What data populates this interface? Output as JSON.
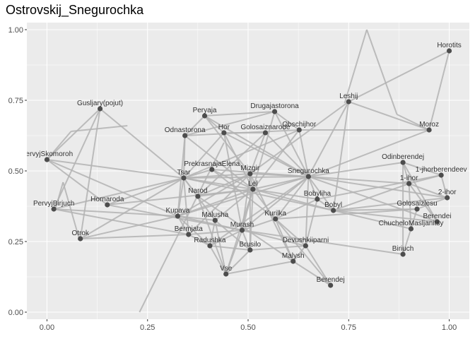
{
  "chart_data": {
    "type": "network",
    "title": "Ostrovskij_Snegurochka",
    "xlabel": "",
    "ylabel": "",
    "xlim": [
      -0.05,
      1.05
    ],
    "ylim": [
      -0.025,
      1.025
    ],
    "x_ticks": [
      0.0,
      0.25,
      0.5,
      0.75,
      1.0
    ],
    "x_tick_labels": [
      "0.00",
      "0.25",
      "0.50",
      "0.75",
      "1.00"
    ],
    "y_ticks": [
      0.0,
      0.25,
      0.5,
      0.75,
      1.0
    ],
    "y_tick_labels": [
      "0.00",
      "0.25",
      "0.50",
      "0.75",
      "1.00"
    ],
    "grid": true,
    "colors": {
      "panel": "#ebebeb",
      "grid": "#ffffff",
      "edge": "#b3b3b3",
      "node": "#4d4d4d",
      "label": "#333333"
    },
    "nodes": [
      {
        "id": "Horotits",
        "label": "Horotits",
        "x": 1.0,
        "y": 0.925
      },
      {
        "id": "Leshij",
        "label": "Leshij",
        "x": 0.75,
        "y": 0.745
      },
      {
        "id": "Moroz",
        "label": "Moroz",
        "x": 0.95,
        "y": 0.645
      },
      {
        "id": "Gusljary",
        "label": "Gusljary(pojut)",
        "x": 0.132,
        "y": 0.72
      },
      {
        "id": "Peryaja",
        "label": "Peryaja",
        "x": 0.392,
        "y": 0.695
      },
      {
        "id": "Drugajastorona",
        "label": "Drugajastorona",
        "x": 0.566,
        "y": 0.71
      },
      {
        "id": "Obschijhor",
        "label": "Obschijhor",
        "x": 0.627,
        "y": 0.645
      },
      {
        "id": "Goloszaznarode",
        "label": "Golosaiznarode",
        "x": 0.543,
        "y": 0.635
      },
      {
        "id": "Hor",
        "label": "Hor",
        "x": 0.44,
        "y": 0.635
      },
      {
        "id": "Odnastorona",
        "label": "Odnastorona",
        "x": 0.343,
        "y": 0.625
      },
      {
        "id": "PervyjSkomoroh",
        "label": "PervyjSkomoroh",
        "x": 0.0,
        "y": 0.54
      },
      {
        "id": "Odinberendej",
        "label": "Odinberendej",
        "x": 0.885,
        "y": 0.53
      },
      {
        "id": "1jhorberendeev",
        "label": "1-jhorberendeev",
        "x": 0.98,
        "y": 0.485
      },
      {
        "id": "PrekrasnajaElena",
        "label": "PrekrasnajaElena",
        "x": 0.41,
        "y": 0.505
      },
      {
        "id": "Mizgir",
        "label": "Mizgir",
        "x": 0.505,
        "y": 0.49
      },
      {
        "id": "Snegurochka",
        "label": "Snegurochka",
        "x": 0.65,
        "y": 0.48
      },
      {
        "id": "Tsar",
        "label": "Tsar",
        "x": 0.34,
        "y": 0.475
      },
      {
        "id": "1ihor",
        "label": "1-ihor",
        "x": 0.9,
        "y": 0.455
      },
      {
        "id": "Lel",
        "label": "Lel",
        "x": 0.512,
        "y": 0.435
      },
      {
        "id": "Narod",
        "label": "Narod",
        "x": 0.375,
        "y": 0.41
      },
      {
        "id": "2ihor",
        "label": "2-ihor",
        "x": 0.995,
        "y": 0.405
      },
      {
        "id": "Bobyliha",
        "label": "Bobyliha",
        "x": 0.672,
        "y": 0.4
      },
      {
        "id": "PervyjBirjuch",
        "label": "PervyjBirjuch",
        "x": 0.017,
        "y": 0.365
      },
      {
        "id": "Hornaroda",
        "label": "Hornaroda",
        "x": 0.15,
        "y": 0.38
      },
      {
        "id": "Golosaizlesu",
        "label": "Golosaizlesu",
        "x": 0.92,
        "y": 0.365
      },
      {
        "id": "Bobyl",
        "label": "Bobyl",
        "x": 0.712,
        "y": 0.36
      },
      {
        "id": "Kupava",
        "label": "Kupava",
        "x": 0.325,
        "y": 0.34
      },
      {
        "id": "Malusha",
        "label": "Malusha",
        "x": 0.418,
        "y": 0.325
      },
      {
        "id": "Kurilka",
        "label": "Kurilka",
        "x": 0.568,
        "y": 0.33
      },
      {
        "id": "Berendei",
        "label": "Berendei",
        "x": 0.97,
        "y": 0.32
      },
      {
        "id": "Bermjata",
        "label": "Bermjata",
        "x": 0.352,
        "y": 0.275
      },
      {
        "id": "Murash",
        "label": "Murash",
        "x": 0.485,
        "y": 0.29
      },
      {
        "id": "ChucheloMasljanitsy",
        "label": "ChucheloMasljanitsy",
        "x": 0.905,
        "y": 0.295
      },
      {
        "id": "Otrok",
        "label": "Otrok",
        "x": 0.083,
        "y": 0.26
      },
      {
        "id": "Radushka",
        "label": "Radushka",
        "x": 0.405,
        "y": 0.235
      },
      {
        "id": "Brusilo",
        "label": "Brusilo",
        "x": 0.505,
        "y": 0.22
      },
      {
        "id": "Devushkiiparni",
        "label": "Devushkiiparni",
        "x": 0.643,
        "y": 0.235
      },
      {
        "id": "Biriuch",
        "label": "Biriuch",
        "x": 0.885,
        "y": 0.205
      },
      {
        "id": "Malysh",
        "label": "Malysh",
        "x": 0.612,
        "y": 0.18
      },
      {
        "id": "Vse",
        "label": "Vse",
        "x": 0.445,
        "y": 0.135
      },
      {
        "id": "Berendej",
        "label": "Berendej",
        "x": 0.705,
        "y": 0.095
      }
    ],
    "label_anchor_overrides": {
      "PervyjSkomoroh": "middle"
    },
    "edges": [
      [
        "Horotits",
        "Leshij"
      ],
      [
        "Horotits",
        "Moroz"
      ],
      [
        "Leshij",
        "Moroz"
      ],
      [
        "Leshij",
        "Snegurochka"
      ],
      [
        "Leshij",
        "Mizgir"
      ],
      [
        "Leshij",
        "Bobyl"
      ],
      [
        "Moroz",
        "Snegurochka"
      ],
      [
        "Moroz",
        "Obschijhor"
      ],
      [
        "Gusljary",
        "PervyjSkomoroh"
      ],
      [
        "Gusljary",
        "Tsar"
      ],
      [
        "Gusljary",
        "PervyjBirjuch"
      ],
      [
        "Gusljary",
        "Otrok"
      ],
      [
        "PervyjSkomoroh",
        "Tsar"
      ],
      [
        "PervyjSkomoroh",
        "Kupava"
      ],
      [
        "PervyjSkomoroh",
        "Hornaroda"
      ],
      [
        "PervyjBirjuch",
        "Tsar"
      ],
      [
        "PervyjBirjuch",
        "Kupava"
      ],
      [
        "PervyjBirjuch",
        "Bermjata"
      ],
      [
        "Otrok",
        "Tsar"
      ],
      [
        "Otrok",
        "Bermjata"
      ],
      [
        "Otrok",
        "Kupava"
      ],
      [
        "Hornaroda",
        "Tsar"
      ],
      [
        "Hornaroda",
        "Lel"
      ],
      [
        "Hornaroda",
        "Murash"
      ],
      [
        "Peryaja",
        "Drugajastorona"
      ],
      [
        "Peryaja",
        "Odnastorona"
      ],
      [
        "Peryaja",
        "Hor"
      ],
      [
        "Peryaja",
        "Snegurochka"
      ],
      [
        "Peryaja",
        "Mizgir"
      ],
      [
        "Drugajastorona",
        "Odnastorona"
      ],
      [
        "Drugajastorona",
        "Obschijhor"
      ],
      [
        "Drugajastorona",
        "Lel"
      ],
      [
        "Drugajastorona",
        "Snegurochka"
      ],
      [
        "Odnastorona",
        "Obschijhor"
      ],
      [
        "Odnastorona",
        "Tsar"
      ],
      [
        "Odnastorona",
        "Lel"
      ],
      [
        "Odnastorona",
        "Kupava"
      ],
      [
        "Hor",
        "Snegurochka"
      ],
      [
        "Hor",
        "Goloszaznarode"
      ],
      [
        "Hor",
        "Lel"
      ],
      [
        "Hor",
        "Tsar"
      ],
      [
        "Hor",
        "Murash"
      ],
      [
        "Goloszaznarode",
        "Snegurochka"
      ],
      [
        "Goloszaznarode",
        "Mizgir"
      ],
      [
        "Goloszaznarode",
        "Narod"
      ],
      [
        "Obschijhor",
        "Snegurochka"
      ],
      [
        "Obschijhor",
        "Lel"
      ],
      [
        "Obschijhor",
        "Tsar"
      ],
      [
        "Tsar",
        "Snegurochka"
      ],
      [
        "Tsar",
        "Mizgir"
      ],
      [
        "Tsar",
        "Lel"
      ],
      [
        "Tsar",
        "Kupava"
      ],
      [
        "Tsar",
        "Bermjata"
      ],
      [
        "Tsar",
        "Narod"
      ],
      [
        "Tsar",
        "PrekrasnajaElena"
      ],
      [
        "Tsar",
        "Bobyl"
      ],
      [
        "Tsar",
        "Malusha"
      ],
      [
        "PrekrasnajaElena",
        "Lel"
      ],
      [
        "PrekrasnajaElena",
        "Snegurochka"
      ],
      [
        "PrekrasnajaElena",
        "Kurilka"
      ],
      [
        "Mizgir",
        "Snegurochka"
      ],
      [
        "Mizgir",
        "Kupava"
      ],
      [
        "Mizgir",
        "Lel"
      ],
      [
        "Mizgir",
        "Murash"
      ],
      [
        "Mizgir",
        "Malysh"
      ],
      [
        "Mizgir",
        "Bermjata"
      ],
      [
        "Mizgir",
        "Brusilo"
      ],
      [
        "Snegurochka",
        "Lel"
      ],
      [
        "Snegurochka",
        "Kupava"
      ],
      [
        "Snegurochka",
        "Bobyl"
      ],
      [
        "Snegurochka",
        "Bobyliha"
      ],
      [
        "Snegurochka",
        "Murash"
      ],
      [
        "Snegurochka",
        "Berendei"
      ],
      [
        "Snegurochka",
        "Odinberendej"
      ],
      [
        "Snegurochka",
        "1ihor"
      ],
      [
        "Snegurochka",
        "2ihor"
      ],
      [
        "Snegurochka",
        "Devushkiiparni"
      ],
      [
        "Snegurochka",
        "Kurilka"
      ],
      [
        "Snegurochka",
        "Radushka"
      ],
      [
        "Lel",
        "Kupava"
      ],
      [
        "Lel",
        "Bobyl"
      ],
      [
        "Lel",
        "Bobyliha"
      ],
      [
        "Lel",
        "Murash"
      ],
      [
        "Lel",
        "Brusilo"
      ],
      [
        "Lel",
        "Kurilka"
      ],
      [
        "Lel",
        "Vse"
      ],
      [
        "Lel",
        "Malusha"
      ],
      [
        "Bobyl",
        "Bobyliha"
      ],
      [
        "Bobyl",
        "1ihor"
      ],
      [
        "Bobyl",
        "Golosaizlesu"
      ],
      [
        "Bobyl",
        "ChucheloMasljanitsy"
      ],
      [
        "Bobyl",
        "Berendei"
      ],
      [
        "Bobyl",
        "2ihor"
      ],
      [
        "Bobyliha",
        "1jhorberendeev"
      ],
      [
        "Bobyliha",
        "Kurilka"
      ],
      [
        "Bobyliha",
        "Devushkiiparni"
      ],
      [
        "Odinberendej",
        "1jhorberendeev"
      ],
      [
        "Odinberendej",
        "1ihor"
      ],
      [
        "Odinberendej",
        "Biriuch"
      ],
      [
        "Odinberendej",
        "Berendei"
      ],
      [
        "1jhorberendeev",
        "1ihor"
      ],
      [
        "1jhorberendeev",
        "2ihor"
      ],
      [
        "1ihor",
        "2ihor"
      ],
      [
        "1ihor",
        "ChucheloMasljanitsy"
      ],
      [
        "1ihor",
        "Berendei"
      ],
      [
        "2ihor",
        "Golosaizlesu"
      ],
      [
        "Golosaizlesu",
        "ChucheloMasljanitsy"
      ],
      [
        "Golosaizlesu",
        "Kurilka"
      ],
      [
        "Biriuch",
        "ChucheloMasljanitsy"
      ],
      [
        "Biriuch",
        "Murash"
      ],
      [
        "Kupava",
        "Bermjata"
      ],
      [
        "Kupava",
        "Malusha"
      ],
      [
        "Kupava",
        "Radushka"
      ],
      [
        "Kupava",
        "Murash"
      ],
      [
        "Murash",
        "Brusilo"
      ],
      [
        "Murash",
        "Kurilka"
      ],
      [
        "Murash",
        "Radushka"
      ],
      [
        "Murash",
        "Vse"
      ],
      [
        "Murash",
        "Devushkiiparni"
      ],
      [
        "Malusha",
        "Radushka"
      ],
      [
        "Malusha",
        "Brusilo"
      ],
      [
        "Malusha",
        "Vse"
      ],
      [
        "Kurilka",
        "Devushkiiparni"
      ],
      [
        "Kurilka",
        "Malysh"
      ],
      [
        "Kurilka",
        "Berendej"
      ],
      [
        "Devushkiiparni",
        "Malysh"
      ],
      [
        "Devushkiiparni",
        "Berendej"
      ],
      [
        "Devushkiiparni",
        "Brusilo"
      ],
      [
        "Radushka",
        "Brusilo"
      ],
      [
        "Radushka",
        "Vse"
      ],
      [
        "Brusilo",
        "Vse"
      ],
      [
        "Malysh",
        "Vse"
      ],
      [
        "Malysh",
        "Berendej"
      ],
      [
        "Narod",
        "Lel"
      ],
      [
        "Narod",
        "Mizgir"
      ],
      [
        "Narod",
        "Vse"
      ],
      [
        "Narod",
        "Malysh"
      ],
      [
        "Bermjata",
        "Radushka"
      ],
      [
        "Bermjata",
        "Murash"
      ]
    ],
    "free_segments": [
      [
        [
          0.23,
          0.0
        ],
        [
          0.44,
          0.6
        ]
      ],
      [
        [
          0.74,
          0.74
        ],
        [
          0.795,
          1.0
        ]
      ],
      [
        [
          0.795,
          1.0
        ],
        [
          0.87,
          0.7
        ]
      ],
      [
        [
          0.0,
          0.54
        ],
        [
          0.06,
          0.64
        ]
      ],
      [
        [
          0.06,
          0.64
        ],
        [
          0.2,
          0.66
        ]
      ],
      [
        [
          0.04,
          0.46
        ],
        [
          0.08,
          0.26
        ]
      ],
      [
        [
          0.04,
          0.46
        ],
        [
          0.02,
          0.36
        ]
      ],
      [
        [
          0.87,
          0.7
        ],
        [
          0.95,
          0.645
        ]
      ]
    ]
  }
}
